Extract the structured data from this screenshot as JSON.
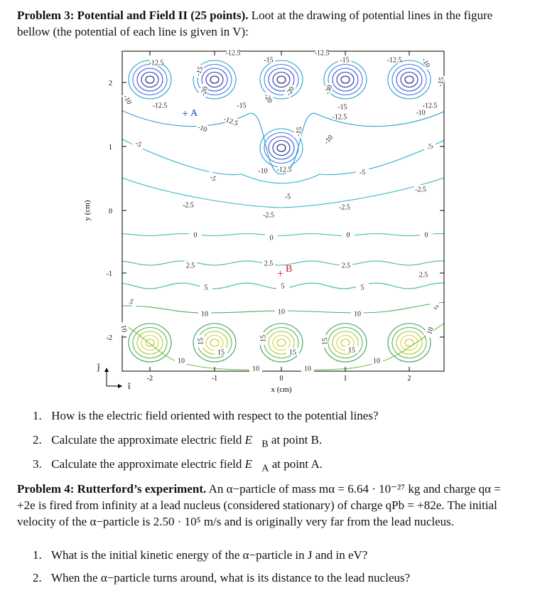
{
  "problem3": {
    "title": "Problem 3: Potential and Field II (25 points).",
    "body": "Loot at the drawing of potential lines in the figure bellow (the potential of each line is given in V):",
    "questions": [
      {
        "number": "1.",
        "text": "How is the electric field oriented with respect to the potential lines?"
      },
      {
        "number": "2.",
        "before": "Calculate the approximate electric field",
        "symbol": "E⃗",
        "sub": "B",
        "after": "at point B."
      },
      {
        "number": "3.",
        "before": "Calculate the approximate electric field",
        "symbol": "E⃗",
        "sub": "A",
        "after": "at point A."
      }
    ]
  },
  "figure": {
    "x_label": "x (cm)",
    "y_label": "y (cm)",
    "x_ticks": [
      "-2",
      "-1",
      "0",
      "1",
      "2"
    ],
    "y_ticks": [
      "2",
      "1",
      "0",
      "-1",
      "-2"
    ],
    "unit_vectors": [
      "î",
      "ĵ"
    ],
    "points": [
      {
        "marker": "+",
        "label": "A"
      },
      {
        "marker": "+",
        "label": "B"
      }
    ],
    "contour_labels": [
      "-12.5",
      "-15",
      "-20",
      "-12.5",
      "-10",
      "-15",
      "-12.5",
      "-10",
      "-12.5",
      "-15",
      "-20",
      "-20",
      "-12.5",
      "-15",
      "-30",
      "-15",
      "-12.5",
      "-10",
      "-12.5",
      "-10",
      "-15",
      "-12.5",
      "-10",
      "-15",
      "-10",
      "-12.5",
      "-5",
      "-5",
      "-5",
      "-5",
      "-5",
      "-2.5",
      "-2.5",
      "-2.5",
      "-2.5",
      "0",
      "0",
      "0",
      "0",
      "2.5",
      "2.5",
      "2.5",
      "2.5",
      "5",
      "5",
      "5",
      "5",
      "5",
      "10",
      "10",
      "10",
      "10",
      "10",
      "15",
      "15",
      "15",
      "15",
      "15",
      "15",
      "10",
      "10",
      "10",
      "10"
    ]
  },
  "problem4": {
    "title": "Problem 4: Rutterford’s experiment.",
    "body": "An α−particle of mass mα = 6.64 · 10⁻²⁷ kg and charge qα = +2e is fired from infinity at a lead nucleus (considered stationary) of charge qPb = +82e. The initial velocity of the α−particle is 2.50 · 10⁵ m/s and is originally very far from the lead nucleus.",
    "questions": [
      {
        "number": "1.",
        "text": "What is the initial kinetic energy of the α−particle in J and in eV?"
      },
      {
        "number": "2.",
        "text": "When the α−particle turns around, what is its distance to the lead nucleus?"
      }
    ]
  }
}
